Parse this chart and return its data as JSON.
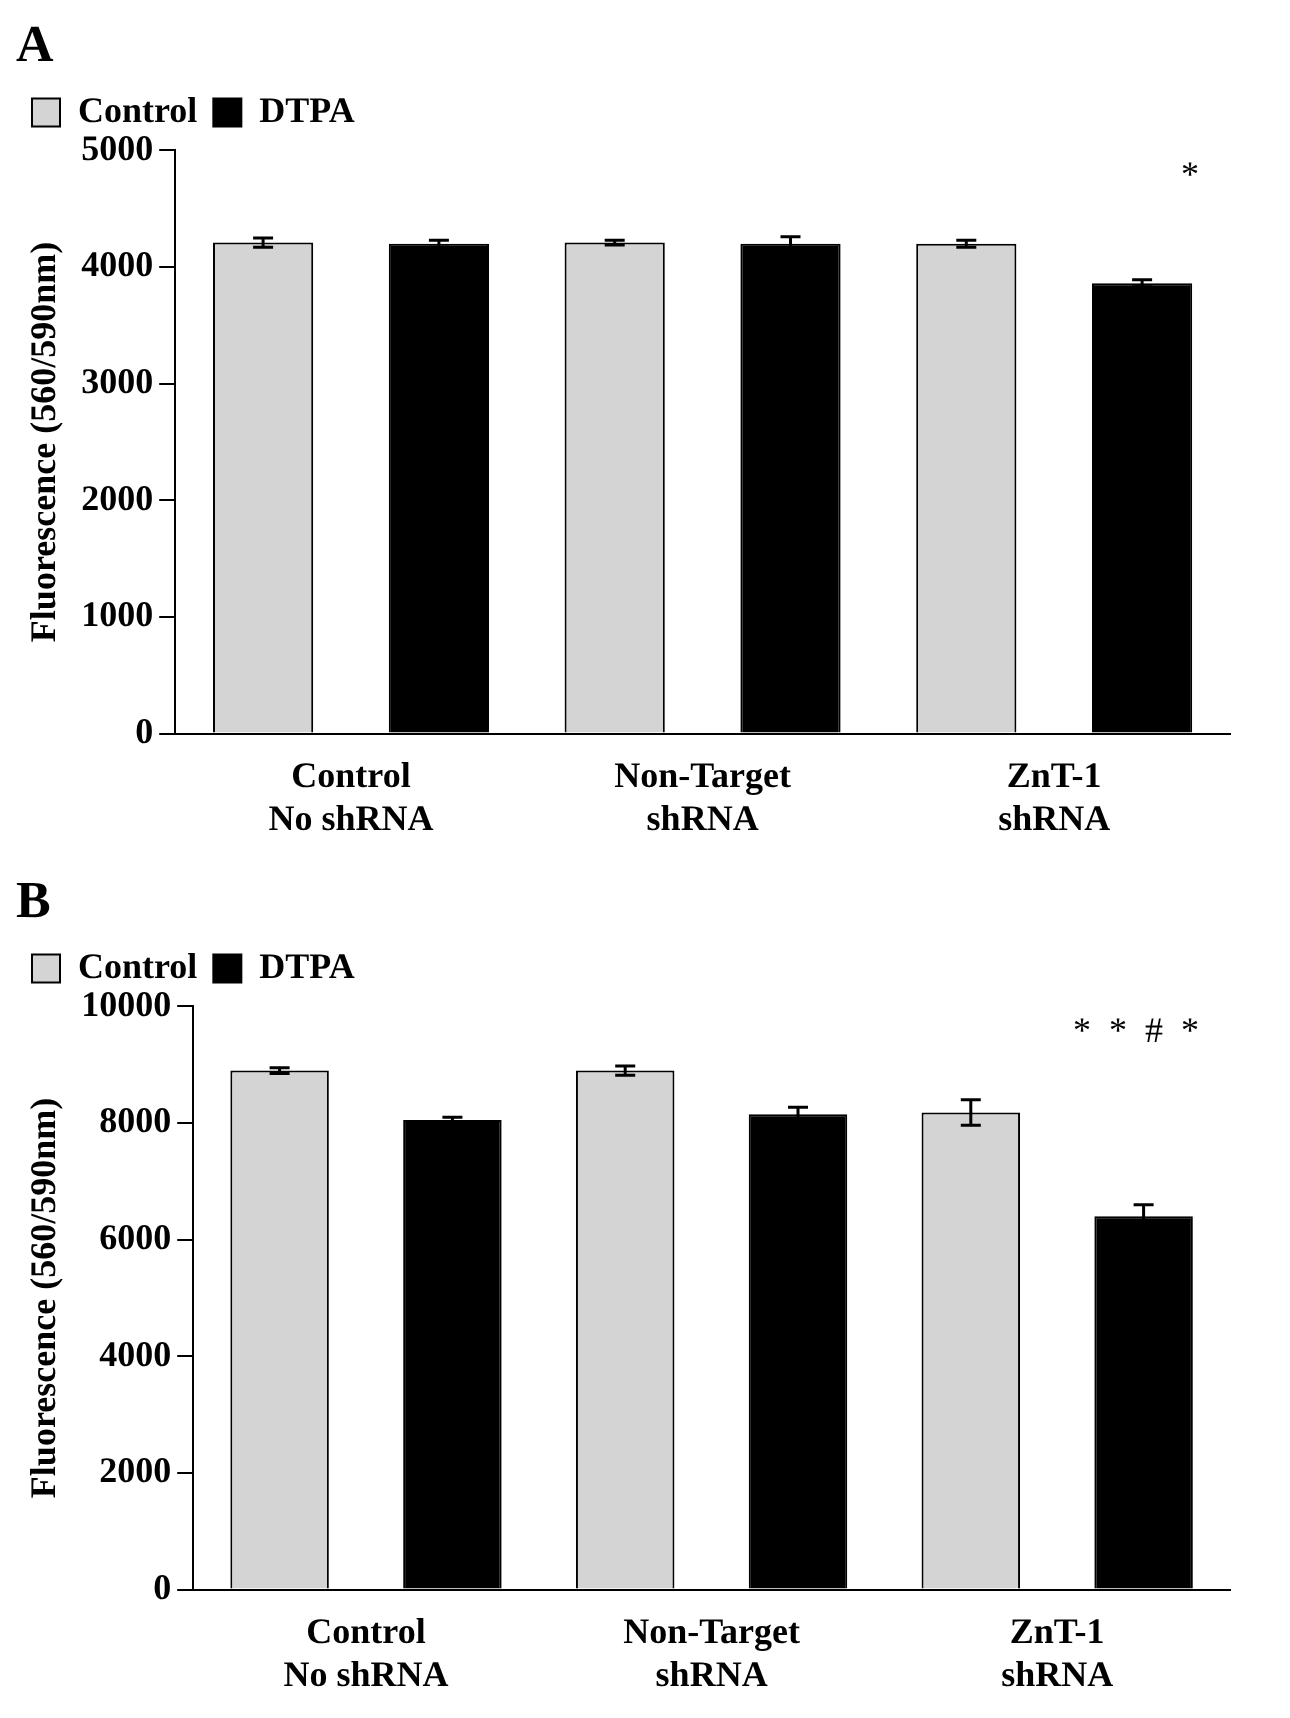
{
  "chart_data": [
    {
      "type": "bar",
      "title": "A",
      "ylabel": "Fluorescence (560/590nm)",
      "categories": [
        "Control\nNo shRNA",
        "Non-Target\nshRNA",
        "ZnT-1\nshRNA"
      ],
      "series": [
        {
          "name": "Control",
          "color": "#d4d4d4",
          "values": [
            4210,
            4210,
            4200
          ],
          "errors": [
            40,
            20,
            30
          ]
        },
        {
          "name": "DTPA",
          "color": "#000000",
          "values": [
            4200,
            4200,
            3860
          ],
          "errors": [
            30,
            60,
            30
          ]
        }
      ],
      "ylim": [
        0,
        5000
      ],
      "yticks": [
        0,
        1000,
        2000,
        3000,
        4000,
        5000
      ],
      "grid": false,
      "legend": "top left",
      "annotations": [
        "*"
      ]
    },
    {
      "type": "bar",
      "title": "B",
      "ylabel": "Fluorescence (560/590nm)",
      "categories": [
        "Control\nNo shRNA",
        "Non-Target\nshRNA",
        "ZnT-1\nshRNA"
      ],
      "series": [
        {
          "name": "Control",
          "color": "#d4d4d4",
          "values": [
            8900,
            8900,
            8180
          ],
          "errors": [
            50,
            80,
            220
          ]
        },
        {
          "name": "DTPA",
          "color": "#000000",
          "values": [
            8050,
            8150,
            6400
          ],
          "errors": [
            50,
            120,
            200
          ]
        }
      ],
      "ylim": [
        0,
        10000
      ],
      "yticks": [
        0,
        2000,
        4000,
        6000,
        8000,
        10000
      ],
      "grid": false,
      "legend": "top left",
      "annotations": [
        "*",
        "*",
        "#",
        "*"
      ]
    }
  ]
}
